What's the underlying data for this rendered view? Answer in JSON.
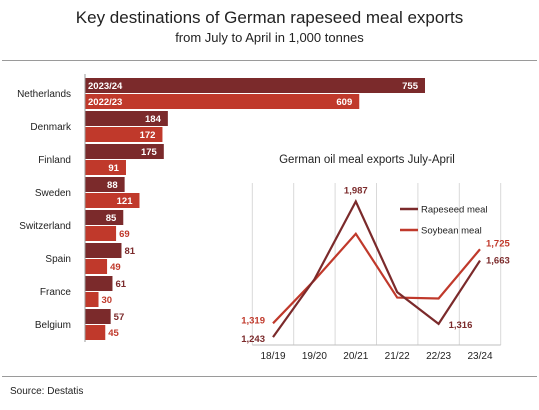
{
  "title": "Key destinations of German rapeseed meal exports",
  "subtitle": "from July to April in 1,000 tonnes",
  "source": "Source: Destatis",
  "colors": {
    "dark": "#7b2a2b",
    "light": "#c0392b",
    "gridline": "#d9d9d9",
    "axis": "#bfbfbf"
  },
  "chart_data": [
    {
      "type": "bar",
      "orientation": "horizontal",
      "title": "Key destinations of German rapeseed meal exports",
      "subtitle": "from July to April in 1,000 tonnes",
      "categories": [
        "Netherlands",
        "Denmark",
        "Finland",
        "Sweden",
        "Switzerland",
        "Spain",
        "France",
        "Belgium"
      ],
      "series": [
        {
          "name": "2023/24",
          "values": [
            755,
            184,
            175,
            88,
            85,
            81,
            61,
            57
          ]
        },
        {
          "name": "2022/23",
          "values": [
            609,
            172,
            91,
            121,
            69,
            49,
            30,
            45
          ]
        }
      ],
      "value_labels": [
        [
          "755",
          "184",
          "175",
          "88",
          "85",
          "81",
          "61",
          "57"
        ],
        [
          "609",
          "172",
          "91",
          "121",
          "69",
          "49",
          "30",
          "45"
        ]
      ],
      "legend": "inside first bars",
      "xlim": [
        0,
        800
      ],
      "grid": false
    },
    {
      "type": "line",
      "title": "German oil meal exports July-April",
      "x": [
        "18/19",
        "19/20",
        "20/21",
        "21/22",
        "22/23",
        "23/24"
      ],
      "series": [
        {
          "name": "Rapeseed meal",
          "values": [
            1243,
            1560,
            1987,
            1490,
            1316,
            1663
          ]
        },
        {
          "name": "Soybean meal",
          "values": [
            1319,
            1555,
            1810,
            1460,
            1455,
            1725
          ]
        }
      ],
      "labels": [
        {
          "series": 0,
          "index": 0,
          "text": "1,243"
        },
        {
          "series": 0,
          "index": 2,
          "text": "1,987"
        },
        {
          "series": 0,
          "index": 4,
          "text": "1,316"
        },
        {
          "series": 0,
          "index": 5,
          "text": "1,663"
        },
        {
          "series": 1,
          "index": 0,
          "text": "1,319"
        },
        {
          "series": 1,
          "index": 5,
          "text": "1,725"
        }
      ],
      "ylim": [
        1200,
        2050
      ],
      "grid": "vertical",
      "legend": "top-right"
    }
  ]
}
